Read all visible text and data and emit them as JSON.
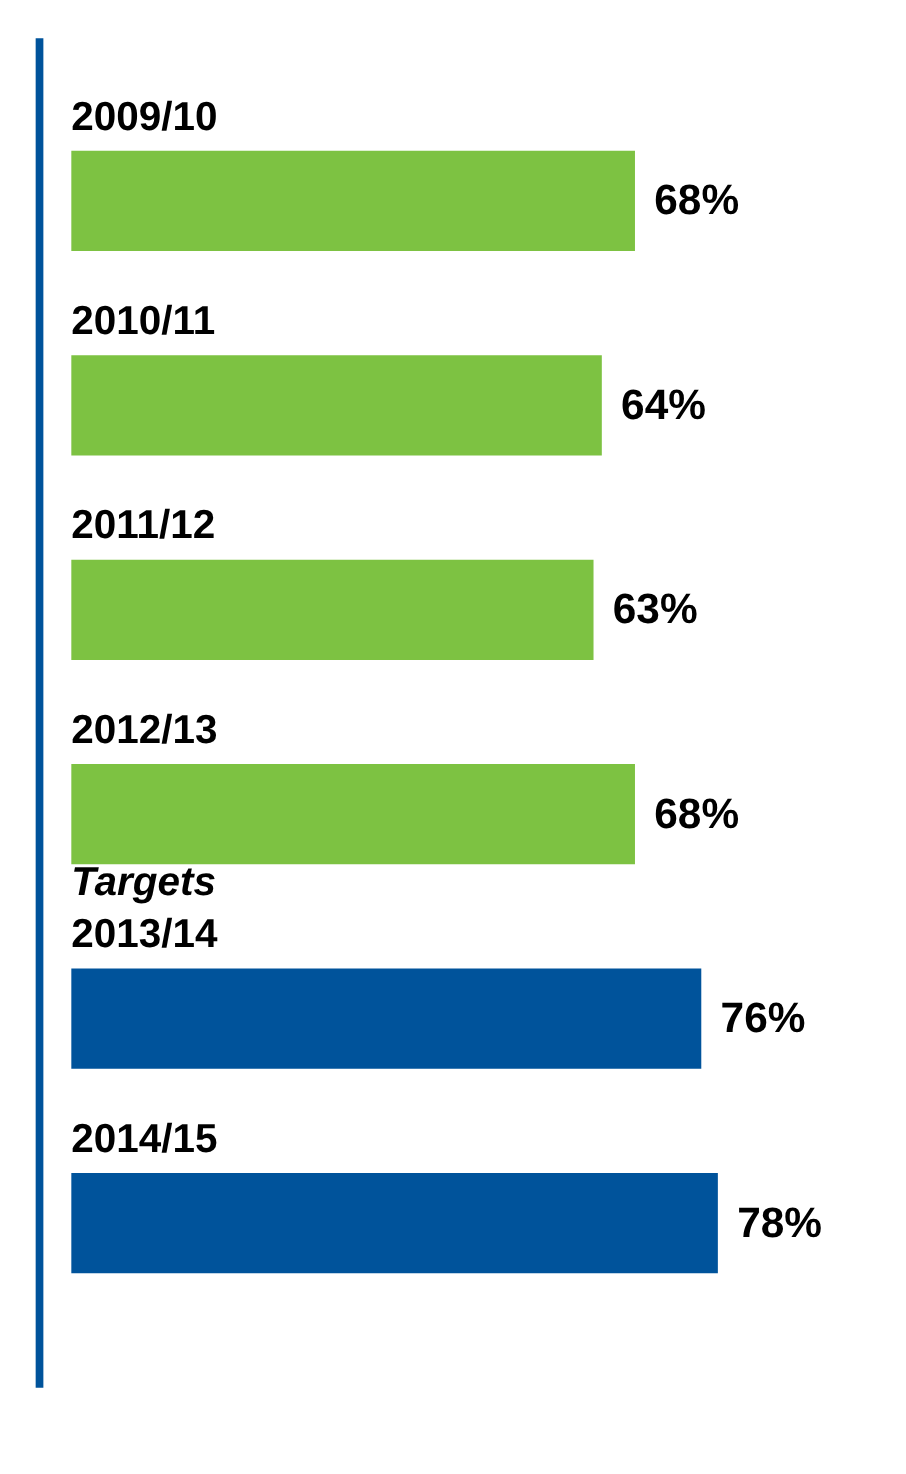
{
  "chart_data": {
    "type": "bar",
    "orientation": "horizontal",
    "categories": [
      "2009/10",
      "2010/11",
      "2011/12",
      "2012/13",
      "2013/14",
      "2014/15"
    ],
    "values": [
      68,
      64,
      63,
      68,
      76,
      78
    ],
    "colors": [
      "#7dc242",
      "#7dc242",
      "#7dc242",
      "#7dc242",
      "#00539b",
      "#00539b"
    ],
    "value_labels": [
      "68%",
      "64%",
      "63%",
      "68%",
      "76%",
      "78%"
    ],
    "xlim": [
      0,
      100
    ],
    "tick_labels": false,
    "grid": false,
    "annotations": [
      "Targets"
    ]
  }
}
